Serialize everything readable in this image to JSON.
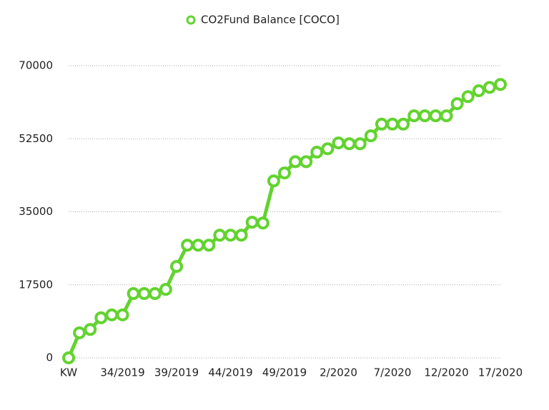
{
  "chart_data": {
    "type": "line",
    "categories": [
      "KW",
      null,
      null,
      null,
      null,
      "34/2019",
      null,
      null,
      null,
      null,
      "39/2019",
      null,
      null,
      null,
      null,
      "44/2019",
      null,
      null,
      null,
      null,
      "49/2019",
      null,
      null,
      null,
      null,
      "2/2020",
      null,
      null,
      null,
      null,
      "7/2020",
      null,
      null,
      null,
      null,
      "12/2020",
      null,
      null,
      null,
      null,
      "17/2020"
    ],
    "series": [
      {
        "name": "CO2Fund Balance [COCO]",
        "color": "#62d32f",
        "values": [
          0,
          6000,
          6800,
          9600,
          10300,
          10300,
          15400,
          15400,
          15400,
          16400,
          21900,
          27000,
          27000,
          27000,
          29400,
          29400,
          29400,
          32500,
          32300,
          42400,
          44300,
          47000,
          47000,
          49300,
          50100,
          51500,
          51300,
          51300,
          53200,
          56000,
          56000,
          56000,
          58000,
          58000,
          58000,
          58000,
          60900,
          62600,
          64000,
          64800,
          65500
        ]
      }
    ],
    "ylim": [
      0,
      70000
    ],
    "yticks": [
      0,
      17500,
      35000,
      52500,
      70000
    ],
    "grid": true,
    "legend": "top"
  }
}
